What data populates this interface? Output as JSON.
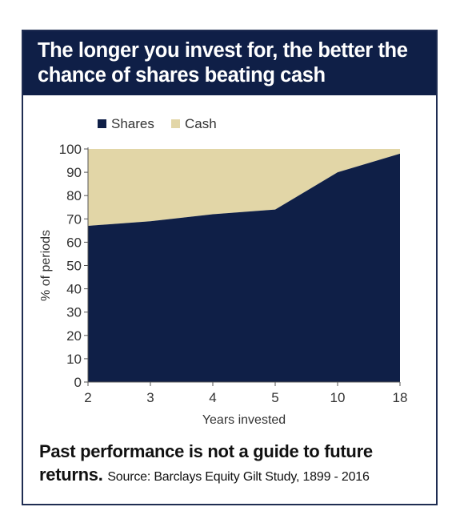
{
  "title": "The longer you invest for, the better the chance of shares beating cash",
  "footer": {
    "note_line1": "Past performance is not a guide to future",
    "note_line2": "returns.",
    "source": "Source: Barclays Equity Gilt Study, 1899 - 2016"
  },
  "colors": {
    "title_band": "#0f1f47",
    "shares": "#0f1f47",
    "cash": "#e2d6a7",
    "border": "#1f2d52"
  },
  "chart_data": {
    "type": "area",
    "stacked": true,
    "title": "",
    "xlabel": "Years invested",
    "ylabel": "% of periods",
    "categories": [
      "2",
      "3",
      "4",
      "5",
      "10",
      "18"
    ],
    "ylim": [
      0,
      100
    ],
    "yticks": [
      0,
      10,
      20,
      30,
      40,
      50,
      60,
      70,
      80,
      90,
      100
    ],
    "legend_position": "top-left",
    "series": [
      {
        "name": "Shares",
        "values": [
          67,
          69,
          72,
          74,
          90,
          98
        ]
      },
      {
        "name": "Cash",
        "values": [
          33,
          31,
          28,
          26,
          10,
          2
        ]
      }
    ]
  }
}
